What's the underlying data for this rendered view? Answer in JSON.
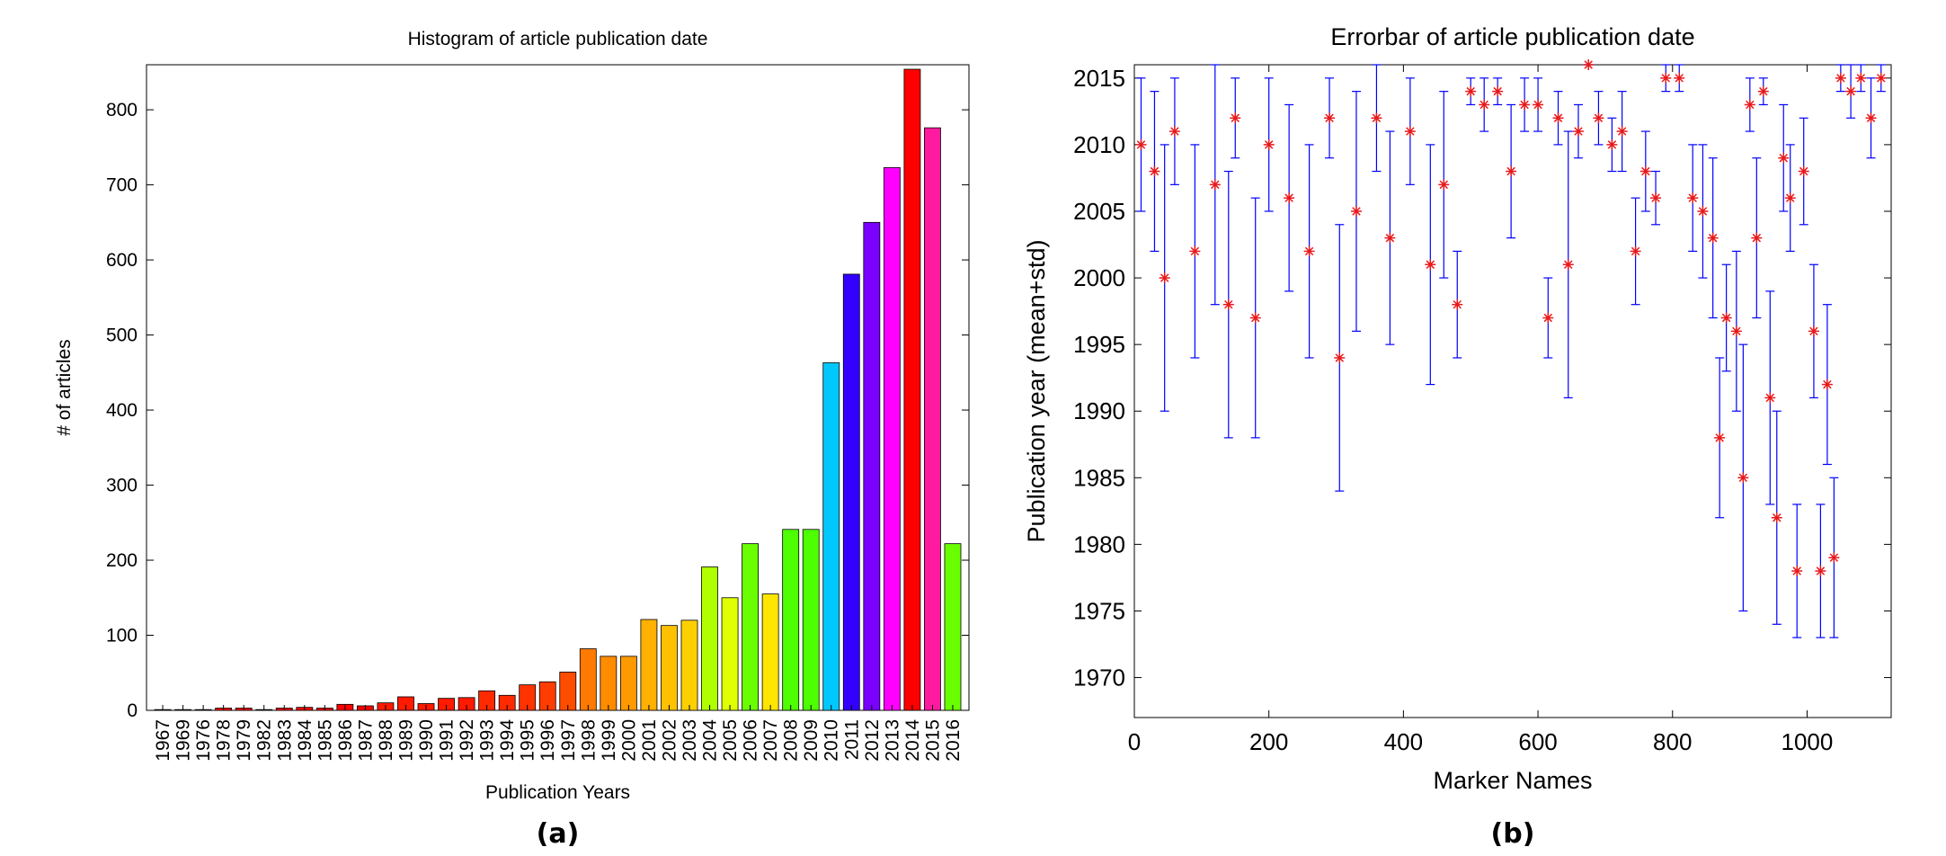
{
  "chart_data": [
    {
      "type": "bar",
      "panel_label": "(a)",
      "title": "Histogram of article publication date",
      "xlabel": "Publication Years",
      "ylabel": "# of articles",
      "ylim": [
        0,
        860
      ],
      "yticks": [
        0,
        100,
        200,
        300,
        400,
        500,
        600,
        700,
        800
      ],
      "grid": false,
      "categories": [
        "1967",
        "1969",
        "1976",
        "1978",
        "1979",
        "1982",
        "1983",
        "1984",
        "1985",
        "1986",
        "1987",
        "1988",
        "1989",
        "1990",
        "1991",
        "1992",
        "1993",
        "1994",
        "1995",
        "1996",
        "1997",
        "1998",
        "1999",
        "2000",
        "2001",
        "2002",
        "2003",
        "2004",
        "2005",
        "2006",
        "2007",
        "2008",
        "2009",
        "2010",
        "2011",
        "2012",
        "2013",
        "2014",
        "2015",
        "2016"
      ],
      "values": [
        1,
        1,
        1,
        3,
        3,
        1,
        3,
        4,
        3,
        8,
        6,
        10,
        18,
        9,
        16,
        17,
        26,
        20,
        34,
        38,
        51,
        82,
        72,
        72,
        121,
        113,
        120,
        191,
        150,
        222,
        155,
        241,
        241,
        463,
        581,
        650,
        723,
        854,
        776,
        222
      ],
      "bar_colors": [
        "#ff0000",
        "#ff0000",
        "#ff0000",
        "#ff0000",
        "#ff0000",
        "#ff0000",
        "#ff0000",
        "#ff0000",
        "#ff0000",
        "#ff0000",
        "#ff0000",
        "#ff1a00",
        "#ff1a00",
        "#ff1a00",
        "#ff1a00",
        "#ff1a00",
        "#ff2a00",
        "#ff2a00",
        "#ff3300",
        "#ff3d00",
        "#ff4d00",
        "#ff7a00",
        "#ff8c00",
        "#ff9900",
        "#ffb000",
        "#ffc000",
        "#ffd000",
        "#b0ff00",
        "#e0ff00",
        "#6aff00",
        "#ffe600",
        "#4dff00",
        "#4dff00",
        "#00c8ff",
        "#3300ff",
        "#7a00ff",
        "#ff00ff",
        "#ff0000",
        "#ff1aa0",
        "#6aff00"
      ]
    },
    {
      "type": "scatter",
      "panel_label": "(b)",
      "title": "Errorbar of article publication date",
      "xlabel": "Marker Names",
      "ylabel": "Publication year (mean+std)",
      "xlim": [
        0,
        1125
      ],
      "ylim": [
        1967,
        2016
      ],
      "xticks": [
        0,
        200,
        400,
        600,
        800,
        1000
      ],
      "yticks": [
        1970,
        1975,
        1980,
        1985,
        1990,
        1995,
        2000,
        2005,
        2010,
        2015
      ],
      "grid": false,
      "series": [
        {
          "marker": "asterisk",
          "marker_color": "#e8191c",
          "errorbar_color": "#0000ff",
          "points": [
            {
              "x": 10,
              "mean": 2010,
              "std": 5
            },
            {
              "x": 30,
              "mean": 2008,
              "std": 6
            },
            {
              "x": 45,
              "mean": 2000,
              "std": 10
            },
            {
              "x": 60,
              "mean": 2011,
              "std": 4
            },
            {
              "x": 90,
              "mean": 2002,
              "std": 8
            },
            {
              "x": 120,
              "mean": 2007,
              "std": 9
            },
            {
              "x": 140,
              "mean": 1998,
              "std": 10
            },
            {
              "x": 150,
              "mean": 2012,
              "std": 3
            },
            {
              "x": 180,
              "mean": 1997,
              "std": 9
            },
            {
              "x": 200,
              "mean": 2010,
              "std": 5
            },
            {
              "x": 230,
              "mean": 2006,
              "std": 7
            },
            {
              "x": 260,
              "mean": 2002,
              "std": 8
            },
            {
              "x": 290,
              "mean": 2012,
              "std": 3
            },
            {
              "x": 305,
              "mean": 1994,
              "std": 10
            },
            {
              "x": 330,
              "mean": 2005,
              "std": 9
            },
            {
              "x": 360,
              "mean": 2012,
              "std": 4
            },
            {
              "x": 380,
              "mean": 2003,
              "std": 8
            },
            {
              "x": 410,
              "mean": 2011,
              "std": 4
            },
            {
              "x": 440,
              "mean": 2001,
              "std": 9
            },
            {
              "x": 460,
              "mean": 2007,
              "std": 7
            },
            {
              "x": 480,
              "mean": 1998,
              "std": 4
            },
            {
              "x": 500,
              "mean": 2014,
              "std": 1
            },
            {
              "x": 520,
              "mean": 2013,
              "std": 2
            },
            {
              "x": 540,
              "mean": 2014,
              "std": 1
            },
            {
              "x": 560,
              "mean": 2008,
              "std": 5
            },
            {
              "x": 580,
              "mean": 2013,
              "std": 2
            },
            {
              "x": 600,
              "mean": 2013,
              "std": 2
            },
            {
              "x": 615,
              "mean": 1997,
              "std": 3
            },
            {
              "x": 630,
              "mean": 2012,
              "std": 2
            },
            {
              "x": 645,
              "mean": 2001,
              "std": 10
            },
            {
              "x": 660,
              "mean": 2011,
              "std": 2
            },
            {
              "x": 675,
              "mean": 2016,
              "std": 0
            },
            {
              "x": 690,
              "mean": 2012,
              "std": 2
            },
            {
              "x": 710,
              "mean": 2010,
              "std": 2
            },
            {
              "x": 725,
              "mean": 2011,
              "std": 3
            },
            {
              "x": 745,
              "mean": 2002,
              "std": 4
            },
            {
              "x": 760,
              "mean": 2008,
              "std": 3
            },
            {
              "x": 775,
              "mean": 2006,
              "std": 2
            },
            {
              "x": 790,
              "mean": 2015,
              "std": 1
            },
            {
              "x": 810,
              "mean": 2015,
              "std": 1
            },
            {
              "x": 830,
              "mean": 2006,
              "std": 4
            },
            {
              "x": 845,
              "mean": 2005,
              "std": 5
            },
            {
              "x": 860,
              "mean": 2003,
              "std": 6
            },
            {
              "x": 870,
              "mean": 1988,
              "std": 6
            },
            {
              "x": 880,
              "mean": 1997,
              "std": 4
            },
            {
              "x": 895,
              "mean": 1996,
              "std": 6
            },
            {
              "x": 905,
              "mean": 1985,
              "std": 10
            },
            {
              "x": 915,
              "mean": 2013,
              "std": 2
            },
            {
              "x": 925,
              "mean": 2003,
              "std": 6
            },
            {
              "x": 935,
              "mean": 2014,
              "std": 1
            },
            {
              "x": 945,
              "mean": 1991,
              "std": 8
            },
            {
              "x": 955,
              "mean": 1982,
              "std": 8
            },
            {
              "x": 965,
              "mean": 2009,
              "std": 4
            },
            {
              "x": 975,
              "mean": 2006,
              "std": 4
            },
            {
              "x": 985,
              "mean": 1978,
              "std": 5
            },
            {
              "x": 995,
              "mean": 2008,
              "std": 4
            },
            {
              "x": 1010,
              "mean": 1996,
              "std": 5
            },
            {
              "x": 1020,
              "mean": 1978,
              "std": 5
            },
            {
              "x": 1030,
              "mean": 1992,
              "std": 6
            },
            {
              "x": 1040,
              "mean": 1979,
              "std": 6
            },
            {
              "x": 1050,
              "mean": 2015,
              "std": 1
            },
            {
              "x": 1065,
              "mean": 2014,
              "std": 2
            },
            {
              "x": 1080,
              "mean": 2015,
              "std": 1
            },
            {
              "x": 1095,
              "mean": 2012,
              "std": 3
            },
            {
              "x": 1110,
              "mean": 2015,
              "std": 1
            }
          ]
        }
      ]
    }
  ]
}
